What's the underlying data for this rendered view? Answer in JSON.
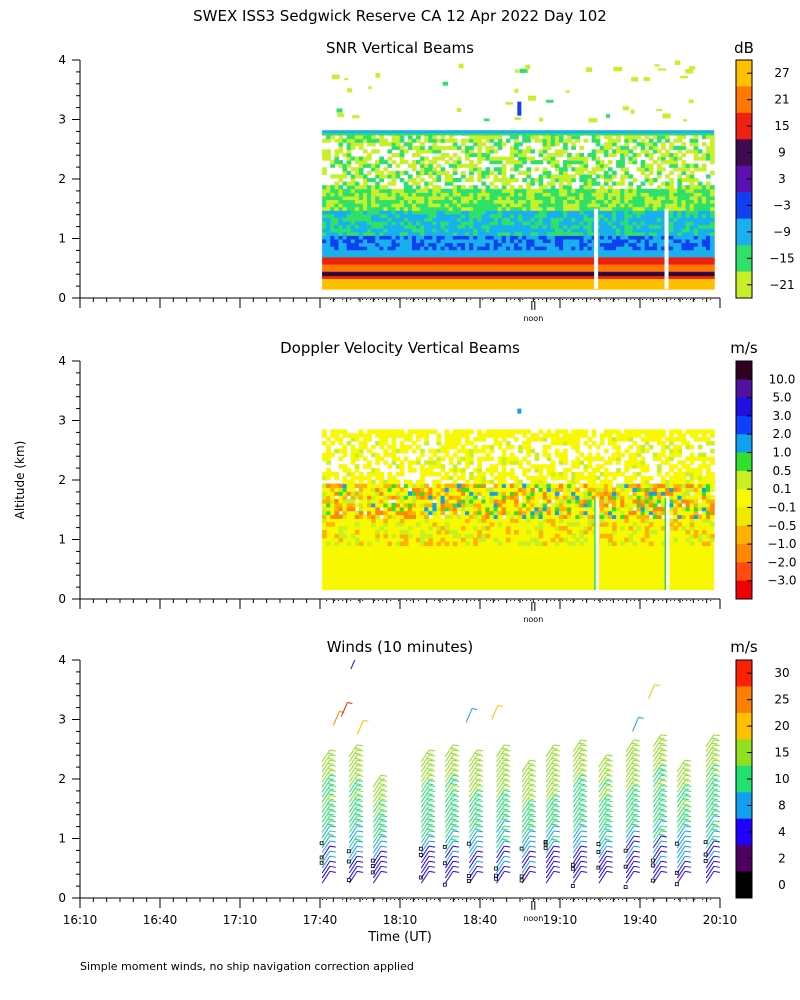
{
  "title": "SWEX ISS3 Sedgwick Reserve CA  12 Apr 2022 Day 102",
  "y_axis_label": "Altitude (km)",
  "x_axis_label": "Time (UT)",
  "footnote": "Simple moment winds, no ship navigation correction applied",
  "noon_label": "noon",
  "x_tick_labels": [
    "16:10",
    "16:40",
    "17:10",
    "17:40",
    "18:10",
    "18:40",
    "19:10",
    "19:40",
    "20:10"
  ],
  "colors": {
    "snr_scale": [
      "#c8f02a",
      "#2fe06a",
      "#1ab0f0",
      "#1040f0",
      "#5a10b0",
      "#400a50",
      "#f02010",
      "#ff7800",
      "#ffc000"
    ],
    "doppler_scale": [
      "#f00000",
      "#ff4a10",
      "#ff8800",
      "#ffb000",
      "#f0e800",
      "#f8f800",
      "#c8f020",
      "#30e030",
      "#10a0f0",
      "#1040ff",
      "#2010e0",
      "#5010a0",
      "#300020"
    ],
    "wind_scale": [
      "#000000",
      "#500060",
      "#2000ff",
      "#10a0f0",
      "#20e070",
      "#90e020",
      "#ffc000",
      "#ff8000",
      "#ff2000"
    ]
  },
  "chart_data": [
    {
      "type": "heatmap",
      "title": "SNR Vertical Beams",
      "colorbar_unit": "dB",
      "colorbar_ticks": [
        "27",
        "21",
        "15",
        "9",
        "3",
        "−3",
        "−9",
        "−15",
        "−21"
      ],
      "colorbar_range": [
        -24,
        33
      ],
      "ylabel": "Altitude (km)",
      "ylim": [
        0,
        4
      ],
      "yticks": [
        0,
        1,
        2,
        3,
        4
      ],
      "x_range_hours": [
        16.1667,
        20.1667
      ],
      "data_window_hours": [
        17.6667,
        20.1333
      ],
      "grid": false
    },
    {
      "type": "heatmap",
      "title": "Doppler Velocity Vertical Beams",
      "colorbar_unit": "m/s",
      "colorbar_ticks": [
        "10.0",
        "5.0",
        "3.0",
        "2.0",
        "1.0",
        "0.5",
        "0.1",
        "−0.1",
        "−0.5",
        "−1.0",
        "−2.0",
        "−3.0"
      ],
      "ylabel": "Altitude (km)",
      "ylim": [
        0,
        4
      ],
      "yticks": [
        0,
        1,
        2,
        3,
        4
      ],
      "x_range_hours": [
        16.1667,
        20.1667
      ],
      "data_window_hours": [
        17.6667,
        20.1333
      ],
      "grid": false
    },
    {
      "type": "scatter",
      "title": "Winds (10 minutes)",
      "colorbar_unit": "m/s",
      "colorbar_ticks": [
        "30",
        "25",
        "20",
        "15",
        "10",
        "8",
        "4",
        "2",
        "0"
      ],
      "colorbar_range": [
        0,
        34
      ],
      "ylabel": "Altitude (km)",
      "xlabel": "Time (UT)",
      "ylim": [
        0,
        4
      ],
      "yticks": [
        0,
        1,
        2,
        3,
        4
      ],
      "x_range_hours": [
        16.1667,
        20.1667
      ],
      "xticks": [
        "16:10",
        "16:40",
        "17:10",
        "17:40",
        "18:10",
        "18:40",
        "19:10",
        "19:40",
        "20:10"
      ],
      "profile_times_hours": [
        17.68,
        17.85,
        18.0,
        18.3,
        18.45,
        18.6,
        18.77,
        18.93,
        19.08,
        19.25,
        19.41,
        19.58,
        19.75,
        19.9,
        20.08
      ],
      "profile_top_km": [
        2.3,
        2.45,
        1.9,
        2.3,
        2.4,
        2.35,
        2.4,
        2.15,
        2.4,
        2.5,
        2.25,
        2.5,
        2.55,
        2.15,
        2.55
      ],
      "grid": false
    }
  ]
}
